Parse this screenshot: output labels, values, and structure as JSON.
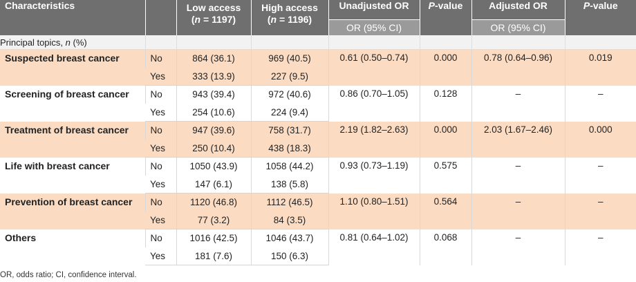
{
  "headers": {
    "characteristics": "Characteristics",
    "low_access_line1": "Low access",
    "low_access_n": "(n = 1197)",
    "high_access_line1": "High access",
    "high_access_n": "(n = 1196)",
    "unadjusted_or": "Unadjusted OR",
    "p_value_1": "P-value",
    "adjusted_or": "Adjusted OR",
    "p_value_2": "P-value",
    "sub_or_ci_1": "OR (95% CI)",
    "sub_or_ci_2": "OR (95% CI)"
  },
  "section_label": "Principal topics, n (%)",
  "rows": [
    {
      "topic": "Suspected breast cancer",
      "no": {
        "label": "No",
        "low": "864 (36.1)",
        "high": "969 (40.5)"
      },
      "yes": {
        "label": "Yes",
        "low": "333 (13.9)",
        "high": "227 (9.5)"
      },
      "unadj_or": "0.61 (0.50–0.74)",
      "p1": "0.000",
      "adj_or": "0.78 (0.64–0.96)",
      "p2": "0.019"
    },
    {
      "topic": "Screening of breast cancer",
      "no": {
        "label": "No",
        "low": "943 (39.4)",
        "high": "972 (40.6)"
      },
      "yes": {
        "label": "Yes",
        "low": "254 (10.6)",
        "high": "224 (9.4)"
      },
      "unadj_or": "0.86 (0.70–1.05)",
      "p1": "0.128",
      "adj_or": "–",
      "p2": "–"
    },
    {
      "topic": "Treatment of breast cancer",
      "no": {
        "label": "No",
        "low": "947 (39.6)",
        "high": "758 (31.7)"
      },
      "yes": {
        "label": "Yes",
        "low": "250 (10.4)",
        "high": "438 (18.3)"
      },
      "unadj_or": "2.19 (1.82–2.63)",
      "p1": "0.000",
      "adj_or": "2.03 (1.67–2.46)",
      "p2": "0.000"
    },
    {
      "topic": "Life with breast cancer",
      "no": {
        "label": "No",
        "low": "1050 (43.9)",
        "high": "1058 (44.2)"
      },
      "yes": {
        "label": "Yes",
        "low": "147 (6.1)",
        "high": "138 (5.8)"
      },
      "unadj_or": "0.93 (0.73–1.19)",
      "p1": "0.575",
      "adj_or": "–",
      "p2": "–"
    },
    {
      "topic": "Prevention of breast cancer",
      "no": {
        "label": "No",
        "low": "1120 (46.8)",
        "high": "1112 (46.5)"
      },
      "yes": {
        "label": "Yes",
        "low": "77 (3.2)",
        "high": "84 (3.5)"
      },
      "unadj_or": "1.10 (0.80–1.51)",
      "p1": "0.564",
      "adj_or": "–",
      "p2": "–"
    },
    {
      "topic": "Others",
      "no": {
        "label": "No",
        "low": "1016 (42.5)",
        "high": "1046 (43.7)"
      },
      "yes": {
        "label": "Yes",
        "low": "181 (7.6)",
        "high": "150 (6.3)"
      },
      "unadj_or": "0.81 (0.64–1.02)",
      "p1": "0.068",
      "adj_or": "–",
      "p2": "–"
    }
  ],
  "footnote": "OR, odds ratio; CI, confidence interval."
}
